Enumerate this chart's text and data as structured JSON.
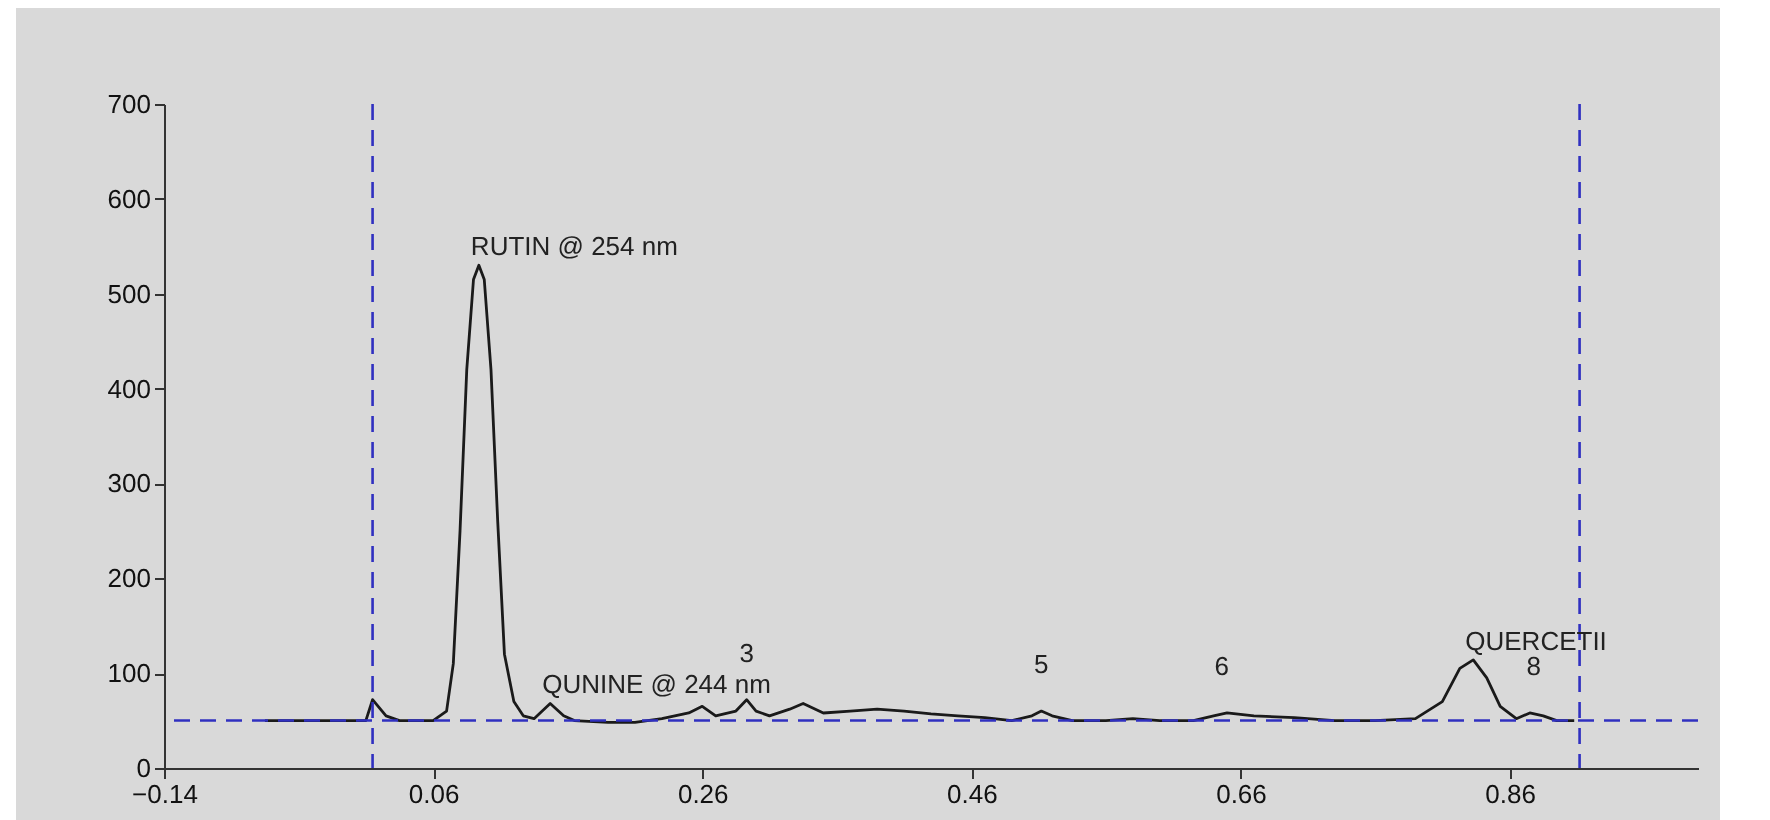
{
  "chart_data": {
    "type": "line",
    "xlim": [
      -0.14,
      1.0
    ],
    "ylim": [
      0,
      700
    ],
    "xticks": [
      -0.14,
      0.06,
      0.26,
      0.46,
      0.66,
      0.86
    ],
    "yticks": [
      0,
      100,
      200,
      300,
      400,
      500,
      600,
      700
    ],
    "line_style": "solid",
    "series": [
      {
        "color": "#1a1a1a",
        "x": [
          -0.065,
          0.01,
          0.015,
          0.025,
          0.035,
          0.06,
          0.07,
          0.075,
          0.08,
          0.085,
          0.09,
          0.094,
          0.098,
          0.103,
          0.108,
          0.113,
          0.12,
          0.127,
          0.135,
          0.147,
          0.157,
          0.165,
          0.19,
          0.21,
          0.23,
          0.25,
          0.26,
          0.27,
          0.285,
          0.293,
          0.3,
          0.31,
          0.325,
          0.335,
          0.35,
          0.37,
          0.39,
          0.41,
          0.43,
          0.45,
          0.47,
          0.49,
          0.505,
          0.512,
          0.52,
          0.535,
          0.56,
          0.58,
          0.6,
          0.625,
          0.64,
          0.65,
          0.67,
          0.7,
          0.73,
          0.76,
          0.79,
          0.81,
          0.823,
          0.833,
          0.843,
          0.853,
          0.865,
          0.875,
          0.885,
          0.895,
          0.908
        ],
        "values": [
          50,
          50,
          72,
          55,
          50,
          50,
          60,
          110,
          250,
          420,
          515,
          530,
          515,
          420,
          260,
          120,
          70,
          55,
          52,
          68,
          55,
          50,
          48,
          48,
          52,
          58,
          65,
          55,
          60,
          72,
          60,
          55,
          62,
          68,
          58,
          60,
          62,
          60,
          57,
          55,
          53,
          50,
          55,
          60,
          55,
          50,
          50,
          52,
          50,
          50,
          55,
          58,
          55,
          53,
          50,
          50,
          52,
          70,
          105,
          114,
          95,
          65,
          52,
          58,
          55,
          50,
          50
        ]
      }
    ],
    "ref_lines": [
      {
        "axis": "x",
        "value": 0.015,
        "color": "#3030c0",
        "line_style": "dashed"
      },
      {
        "axis": "x",
        "value": 0.912,
        "color": "#3030c0",
        "line_style": "dashed"
      },
      {
        "axis": "y",
        "value": 50,
        "color": "#3030c0",
        "line_style": "dashed"
      }
    ],
    "annotations": [
      {
        "text": "RUTIN @ 254 nm",
        "x": 0.094,
        "y": 530
      },
      {
        "text": "QUNINE @ 244 nm",
        "x": 0.147,
        "y": 68
      },
      {
        "text": "3",
        "x": 0.293,
        "y": 72
      },
      {
        "text": "5",
        "x": 0.512,
        "y": 60
      },
      {
        "text": "6",
        "x": 0.646,
        "y": 58
      },
      {
        "text": "QUERCETII",
        "x": 0.833,
        "y": 114
      },
      {
        "text": "8",
        "x": 0.878,
        "y": 58
      }
    ]
  }
}
